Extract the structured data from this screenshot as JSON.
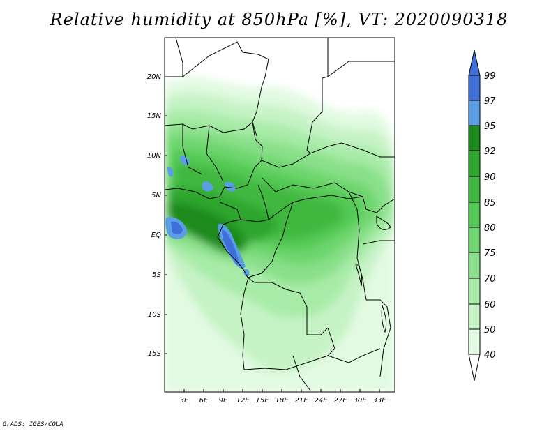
{
  "title": "Relative humidity at 850hPa [%], VT: 2020090318",
  "credit": "GrADS: IGES/COLA",
  "map": {
    "lat_ticks": [
      "20N",
      "15N",
      "10N",
      "5N",
      "EQ",
      "5S",
      "10S",
      "15S"
    ],
    "lon_ticks": [
      "3E",
      "6E",
      "9E",
      "12E",
      "15E",
      "18E",
      "21E",
      "24E",
      "27E",
      "30E",
      "33E"
    ]
  },
  "colorbar": {
    "labels": [
      "99",
      "97",
      "95",
      "92",
      "90",
      "85",
      "80",
      "75",
      "70",
      "60",
      "50",
      "40"
    ],
    "colors": [
      "#3f6fd8",
      "#5a9fe6",
      "#1a8a1a",
      "#2ea62e",
      "#3fb83f",
      "#55c955",
      "#6ed66e",
      "#8ae08a",
      "#a8eba8",
      "#c6f3c6",
      "#e2fae2",
      "#f4fdf4"
    ]
  }
}
